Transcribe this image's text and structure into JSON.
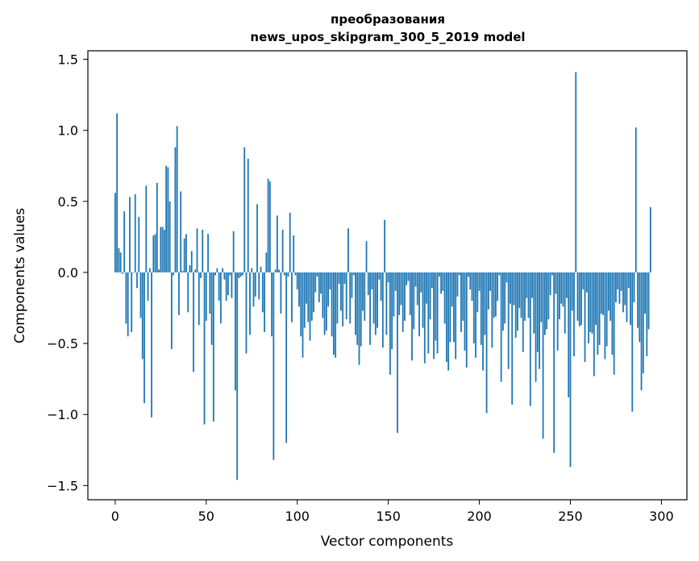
{
  "chart_data": {
    "type": "bar",
    "title": [
      "преобразования",
      "news_upos_skipgram_300_5_2019 model"
    ],
    "xlabel": "Vector components",
    "ylabel": "Components values",
    "xlim": [
      -15,
      314
    ],
    "ylim": [
      -1.6,
      1.56
    ],
    "xticks": [
      0,
      50,
      100,
      150,
      200,
      250,
      300
    ],
    "yticks": [
      1.5,
      1.0,
      0.5,
      0.0,
      -0.5,
      -1.0,
      -1.5
    ],
    "ytick_labels": [
      "1.5",
      "1.0",
      "0.5",
      "0.0",
      "−0.5",
      "−1.0",
      "−1.5"
    ],
    "color": "#1f77b4",
    "grid": false,
    "values": [
      0.56,
      1.12,
      0.17,
      0.14,
      -0.01,
      0.43,
      -0.36,
      -0.45,
      0.53,
      -0.42,
      0.0,
      0.55,
      -0.11,
      0.39,
      -0.32,
      -0.61,
      -0.92,
      0.61,
      -0.2,
      0.03,
      -1.02,
      0.26,
      0.27,
      0.63,
      0.02,
      0.32,
      0.32,
      0.3,
      0.75,
      0.74,
      0.5,
      -0.54,
      -0.02,
      0.88,
      1.03,
      -0.3,
      0.57,
      0.01,
      0.24,
      0.27,
      -0.28,
      0.05,
      0.15,
      -0.7,
      0.02,
      0.31,
      -0.37,
      -0.04,
      0.3,
      -1.07,
      -0.34,
      0.27,
      -0.29,
      -0.51,
      -1.05,
      -0.02,
      0.03,
      -0.2,
      -0.36,
      0.03,
      -0.05,
      -0.2,
      -0.16,
      -0.02,
      -0.18,
      0.29,
      -0.83,
      -1.46,
      -0.04,
      -0.03,
      -0.02,
      0.88,
      -0.57,
      0.8,
      -0.44,
      0.03,
      -0.24,
      -0.17,
      0.48,
      -0.19,
      0.04,
      -0.28,
      -0.42,
      0.14,
      0.66,
      0.64,
      -0.45,
      -1.32,
      0.02,
      0.4,
      0.02,
      -0.29,
      0.3,
      -0.02,
      -1.2,
      -0.03,
      0.42,
      -0.35,
      0.26,
      -0.02,
      -0.12,
      -0.24,
      -0.45,
      -0.6,
      -0.39,
      -0.22,
      -0.35,
      -0.48,
      -0.34,
      -0.28,
      -0.14,
      -0.03,
      -0.21,
      -0.15,
      -0.32,
      -0.44,
      -0.41,
      -0.24,
      -0.12,
      -0.45,
      -0.58,
      -0.6,
      -0.36,
      -0.08,
      -0.27,
      -0.38,
      -0.08,
      -0.33,
      0.31,
      -0.36,
      -0.18,
      -0.02,
      -0.44,
      -0.51,
      -0.65,
      -0.52,
      -0.27,
      -0.34,
      0.22,
      -0.16,
      -0.51,
      -0.12,
      -0.36,
      -0.44,
      -0.39,
      -0.05,
      -0.2,
      -0.53,
      0.37,
      -0.44,
      -0.07,
      -0.72,
      -0.54,
      -0.31,
      -0.13,
      -1.13,
      -0.3,
      -0.23,
      -0.42,
      -0.34,
      -0.09,
      -0.06,
      -0.3,
      -0.62,
      -0.4,
      -0.1,
      -0.23,
      -0.45,
      -0.14,
      -0.39,
      -0.64,
      -0.22,
      -0.57,
      -0.33,
      -0.11,
      -0.61,
      -0.48,
      -0.57,
      -0.03,
      -0.15,
      -0.13,
      -0.36,
      -0.63,
      -0.69,
      -0.49,
      -0.24,
      -0.49,
      -0.61,
      -0.17,
      -0.02,
      -0.42,
      -0.34,
      -0.55,
      -0.67,
      -0.03,
      -0.12,
      -0.2,
      -0.5,
      -0.6,
      -0.28,
      -0.13,
      -0.51,
      -0.69,
      -0.44,
      -0.99,
      -0.26,
      -0.13,
      -0.53,
      -0.32,
      -0.31,
      -0.2,
      -0.02,
      -0.77,
      -0.41,
      -0.36,
      -0.07,
      -0.68,
      -0.22,
      -0.93,
      -0.23,
      -0.46,
      -0.41,
      -0.25,
      -0.32,
      -0.56,
      -0.34,
      -0.18,
      -0.32,
      -0.94,
      -0.18,
      -0.43,
      -0.77,
      -0.56,
      -0.68,
      -0.35,
      -1.17,
      -0.44,
      -0.4,
      -0.33,
      -0.16,
      -0.02,
      -1.27,
      -0.15,
      -0.55,
      -0.33,
      -0.22,
      -0.24,
      -0.43,
      -0.18,
      -0.88,
      -1.37,
      -0.27,
      -0.59,
      1.41,
      -0.34,
      -0.38,
      -0.37,
      -0.12,
      -0.63,
      -0.14,
      -0.5,
      -0.42,
      -0.43,
      -0.73,
      -0.37,
      -0.58,
      -0.51,
      -0.29,
      -0.3,
      -0.61,
      -0.52,
      -0.27,
      -0.34,
      -0.58,
      -0.72,
      -0.21,
      -0.12,
      -0.22,
      -0.13,
      -0.28,
      -0.23,
      -0.35,
      -0.11,
      -0.37,
      -0.98,
      -0.21,
      1.02,
      -0.39,
      -0.49,
      -0.83,
      -0.71,
      -0.29,
      -0.59,
      -0.4,
      0.46
    ]
  }
}
